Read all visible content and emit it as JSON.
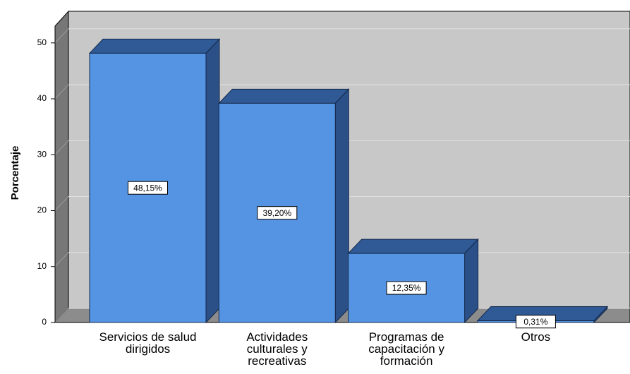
{
  "chart_data": {
    "type": "bar3d",
    "y_label": "Porcentaje",
    "categories": [
      "Servicios de salud dirigidos",
      "Actividades culturales y recreativas",
      "Programas de capacitación y formación",
      "Otros"
    ],
    "values": [
      48.15,
      39.2,
      12.35,
      0.31
    ],
    "value_labels": [
      "48,15%",
      "39,20%",
      "12,35%",
      "0,31%"
    ],
    "color": "#5594e2",
    "ylim": [
      0,
      53
    ],
    "yticks": [
      0,
      10,
      20,
      30,
      40,
      50
    ],
    "grid": true
  }
}
